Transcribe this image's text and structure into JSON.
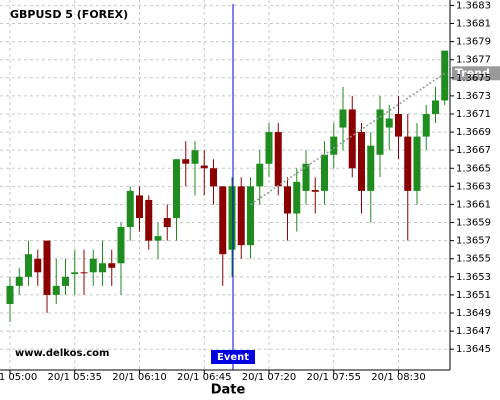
{
  "chart_data": {
    "type": "candlestick",
    "title": "GBPUSD 5 (FOREX)",
    "x_label": "Date",
    "watermark": "www.delkos.com",
    "categories": [
      "20/1 05:00",
      null,
      null,
      null,
      null,
      null,
      null,
      "20/1 05:35",
      null,
      null,
      null,
      null,
      null,
      null,
      "20/1 06:10",
      null,
      null,
      null,
      null,
      null,
      null,
      "20/1 06:45",
      null,
      null,
      null,
      null,
      null,
      null,
      "20/1 07:20",
      null,
      null,
      null,
      null,
      null,
      null,
      "20/1 07:55",
      null,
      null,
      null,
      null,
      null,
      null,
      "20/1 08:30",
      null,
      null,
      null,
      null,
      null
    ],
    "open": [
      1.365,
      1.3652,
      1.3653,
      1.3655,
      1.3657,
      1.3651,
      1.3652,
      1.36533,
      1.36535,
      1.36535,
      1.36535,
      1.36545,
      1.36545,
      1.36585,
      1.3662,
      1.36615,
      1.3657,
      1.36595,
      1.36595,
      1.3666,
      1.36655,
      1.36653,
      1.3665,
      1.3663,
      1.3656,
      1.3663,
      1.36565,
      1.3663,
      1.36655,
      1.3669,
      1.3663,
      1.366,
      1.36625,
      1.36626,
      1.36625,
      1.36665,
      1.36695,
      1.36715,
      1.3669,
      1.36625,
      1.36665,
      1.36695,
      1.3671,
      1.36685,
      1.36625,
      1.36685,
      1.3671,
      1.36725
    ],
    "high": [
      1.3653,
      1.3654,
      1.3657,
      1.3656,
      1.3657,
      1.3655,
      1.3655,
      1.3656,
      1.3656,
      1.3656,
      1.3657,
      1.3656,
      1.3659,
      1.3663,
      1.3663,
      1.3662,
      1.3659,
      1.3661,
      1.3666,
      1.3668,
      1.3668,
      1.3667,
      1.3666,
      1.3663,
      1.3664,
      1.3664,
      1.3664,
      1.3667,
      1.367,
      1.367,
      1.3664,
      1.3665,
      1.3667,
      1.3664,
      1.3668,
      1.367,
      1.3674,
      1.3673,
      1.367,
      1.3669,
      1.3673,
      1.3672,
      1.3673,
      1.3671,
      1.367,
      1.3672,
      1.3674,
      1.3678
    ],
    "low": [
      1.3648,
      1.3651,
      1.3652,
      1.3652,
      1.3649,
      1.365,
      1.3651,
      1.3651,
      1.3651,
      1.3652,
      1.3652,
      1.3652,
      1.3651,
      1.3657,
      1.3658,
      1.3656,
      1.3655,
      1.3657,
      1.3657,
      1.3663,
      1.3662,
      1.3662,
      1.3661,
      1.3652,
      1.3653,
      1.3655,
      1.3655,
      1.3661,
      1.3664,
      1.3662,
      1.3657,
      1.3658,
      1.3661,
      1.366,
      1.3661,
      1.3665,
      1.3667,
      1.3664,
      1.366,
      1.3659,
      1.3664,
      1.3667,
      1.3666,
      1.3657,
      1.3661,
      1.3667,
      1.367,
      1.3672
    ],
    "close": [
      1.3652,
      1.3653,
      1.36555,
      1.36535,
      1.3651,
      1.3652,
      1.3653,
      1.36535,
      1.36534,
      1.3655,
      1.36545,
      1.3654,
      1.36585,
      1.36625,
      1.36595,
      1.3657,
      1.36575,
      1.36585,
      1.3666,
      1.36655,
      1.3667,
      1.3665,
      1.3663,
      1.36555,
      1.3663,
      1.36565,
      1.3663,
      1.36655,
      1.3669,
      1.3663,
      1.366,
      1.36635,
      1.36655,
      1.36624,
      1.36665,
      1.36685,
      1.36715,
      1.3665,
      1.36625,
      1.36675,
      1.36715,
      1.36705,
      1.36685,
      1.36625,
      1.36685,
      1.3671,
      1.36725,
      1.3678
    ],
    "up_color": "#1e8c1e",
    "down_color": "#8b0000",
    "ylim": [
      1.36427,
      1.36836
    ],
    "yticks": [
      1.3645,
      1.3647,
      1.3649,
      1.3651,
      1.3653,
      1.3655,
      1.3657,
      1.3659,
      1.3661,
      1.3663,
      1.3665,
      1.3667,
      1.3669,
      1.3671,
      1.3673,
      1.3675,
      1.3677,
      1.3679,
      1.3681,
      1.3683
    ],
    "grid": true,
    "event": {
      "label": "Event",
      "index": 24,
      "color": "#0000e0"
    },
    "trend": {
      "label": "Trend",
      "start": [
        26,
        1.3661
      ],
      "end": [
        47,
        1.36755
      ],
      "color": "#999999"
    }
  }
}
